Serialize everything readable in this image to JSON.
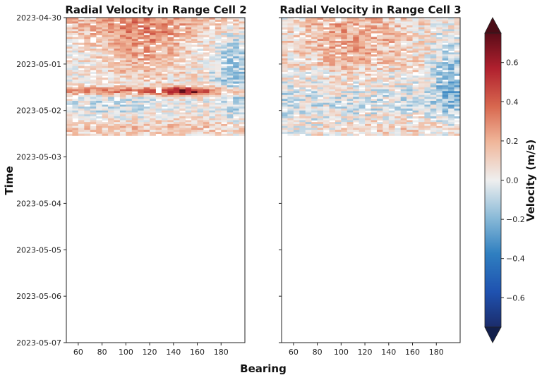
{
  "figure": {
    "xlabel": "Bearing",
    "ylabel": "Time",
    "colorbar": {
      "label": "Velocity (m/s)",
      "range": [
        -0.75,
        0.75
      ],
      "ticks": [
        -0.6,
        -0.4,
        -0.2,
        0.0,
        0.2,
        0.4,
        0.6
      ],
      "tick_labels": [
        "−0.6",
        "−0.4",
        "−0.2",
        "0.0",
        "0.2",
        "0.4",
        "0.6"
      ],
      "extend": "both",
      "colormap": "RdBu_r",
      "colors": {
        "low": "#10204a",
        "mid": "#efefef",
        "high": "#4a0c16"
      }
    }
  },
  "chart_data": [
    {
      "type": "heatmap",
      "title": "Radial Velocity in Range Cell 2",
      "xlabel": "Bearing",
      "ylabel": "Time",
      "xlim": [
        50,
        200
      ],
      "x_ticks": [
        60,
        80,
        100,
        120,
        140,
        160,
        180
      ],
      "ylim": [
        "2023-04-30",
        "2023-05-07"
      ],
      "y_tick_labels": [
        "2023-04-30",
        "2023-05-01",
        "2023-05-02",
        "2023-05-03",
        "2023-05-04",
        "2023-05-05",
        "2023-05-06",
        "2023-05-07"
      ],
      "data_time_range": [
        "2023-04-30T00:00",
        "2023-05-02T13:00"
      ],
      "bearing_step": 5,
      "time_step_hours": 1,
      "value_range": [
        -0.3,
        0.7
      ],
      "features": [
        {
          "description": "positive band",
          "time": "2023-05-01T14:00",
          "bearing_range": [
            50,
            200
          ],
          "velocity": 0.35
        },
        {
          "description": "peak",
          "time": "2023-05-01T14:00",
          "bearing_range": [
            130,
            160
          ],
          "velocity": 0.7
        },
        {
          "description": "positive patch",
          "time_range": [
            "2023-04-30T02:00",
            "2023-05-01T04:00"
          ],
          "bearing_range": [
            90,
            130
          ],
          "velocity": 0.3
        },
        {
          "description": "negative patch",
          "time_range": [
            "2023-04-30T14:00",
            "2023-05-01T12:00"
          ],
          "bearing_range": [
            170,
            200
          ],
          "velocity": -0.25
        }
      ]
    },
    {
      "type": "heatmap",
      "title": "Radial Velocity in Range Cell 3",
      "xlabel": "Bearing",
      "ylabel": "Time",
      "xlim": [
        50,
        200
      ],
      "x_ticks": [
        60,
        80,
        100,
        120,
        140,
        160,
        180
      ],
      "ylim": [
        "2023-04-30",
        "2023-05-07"
      ],
      "data_time_range": [
        "2023-04-30T00:00",
        "2023-05-02T13:00"
      ],
      "bearing_step": 5,
      "time_step_hours": 1,
      "value_range": [
        -0.4,
        0.35
      ],
      "features": [
        {
          "description": "positive patch",
          "time_range": [
            "2023-04-30T02:00",
            "2023-05-01T04:00"
          ],
          "bearing_range": [
            70,
            140
          ],
          "velocity": 0.3
        },
        {
          "description": "negative patch",
          "time_range": [
            "2023-04-30T20:00",
            "2023-05-01T20:00"
          ],
          "bearing_range": [
            175,
            200
          ],
          "velocity": -0.3
        },
        {
          "description": "mixed",
          "time_range": [
            "2023-05-01T18:00",
            "2023-05-02T13:00"
          ],
          "bearing_range": [
            50,
            200
          ],
          "velocity": 0.0
        }
      ]
    }
  ]
}
